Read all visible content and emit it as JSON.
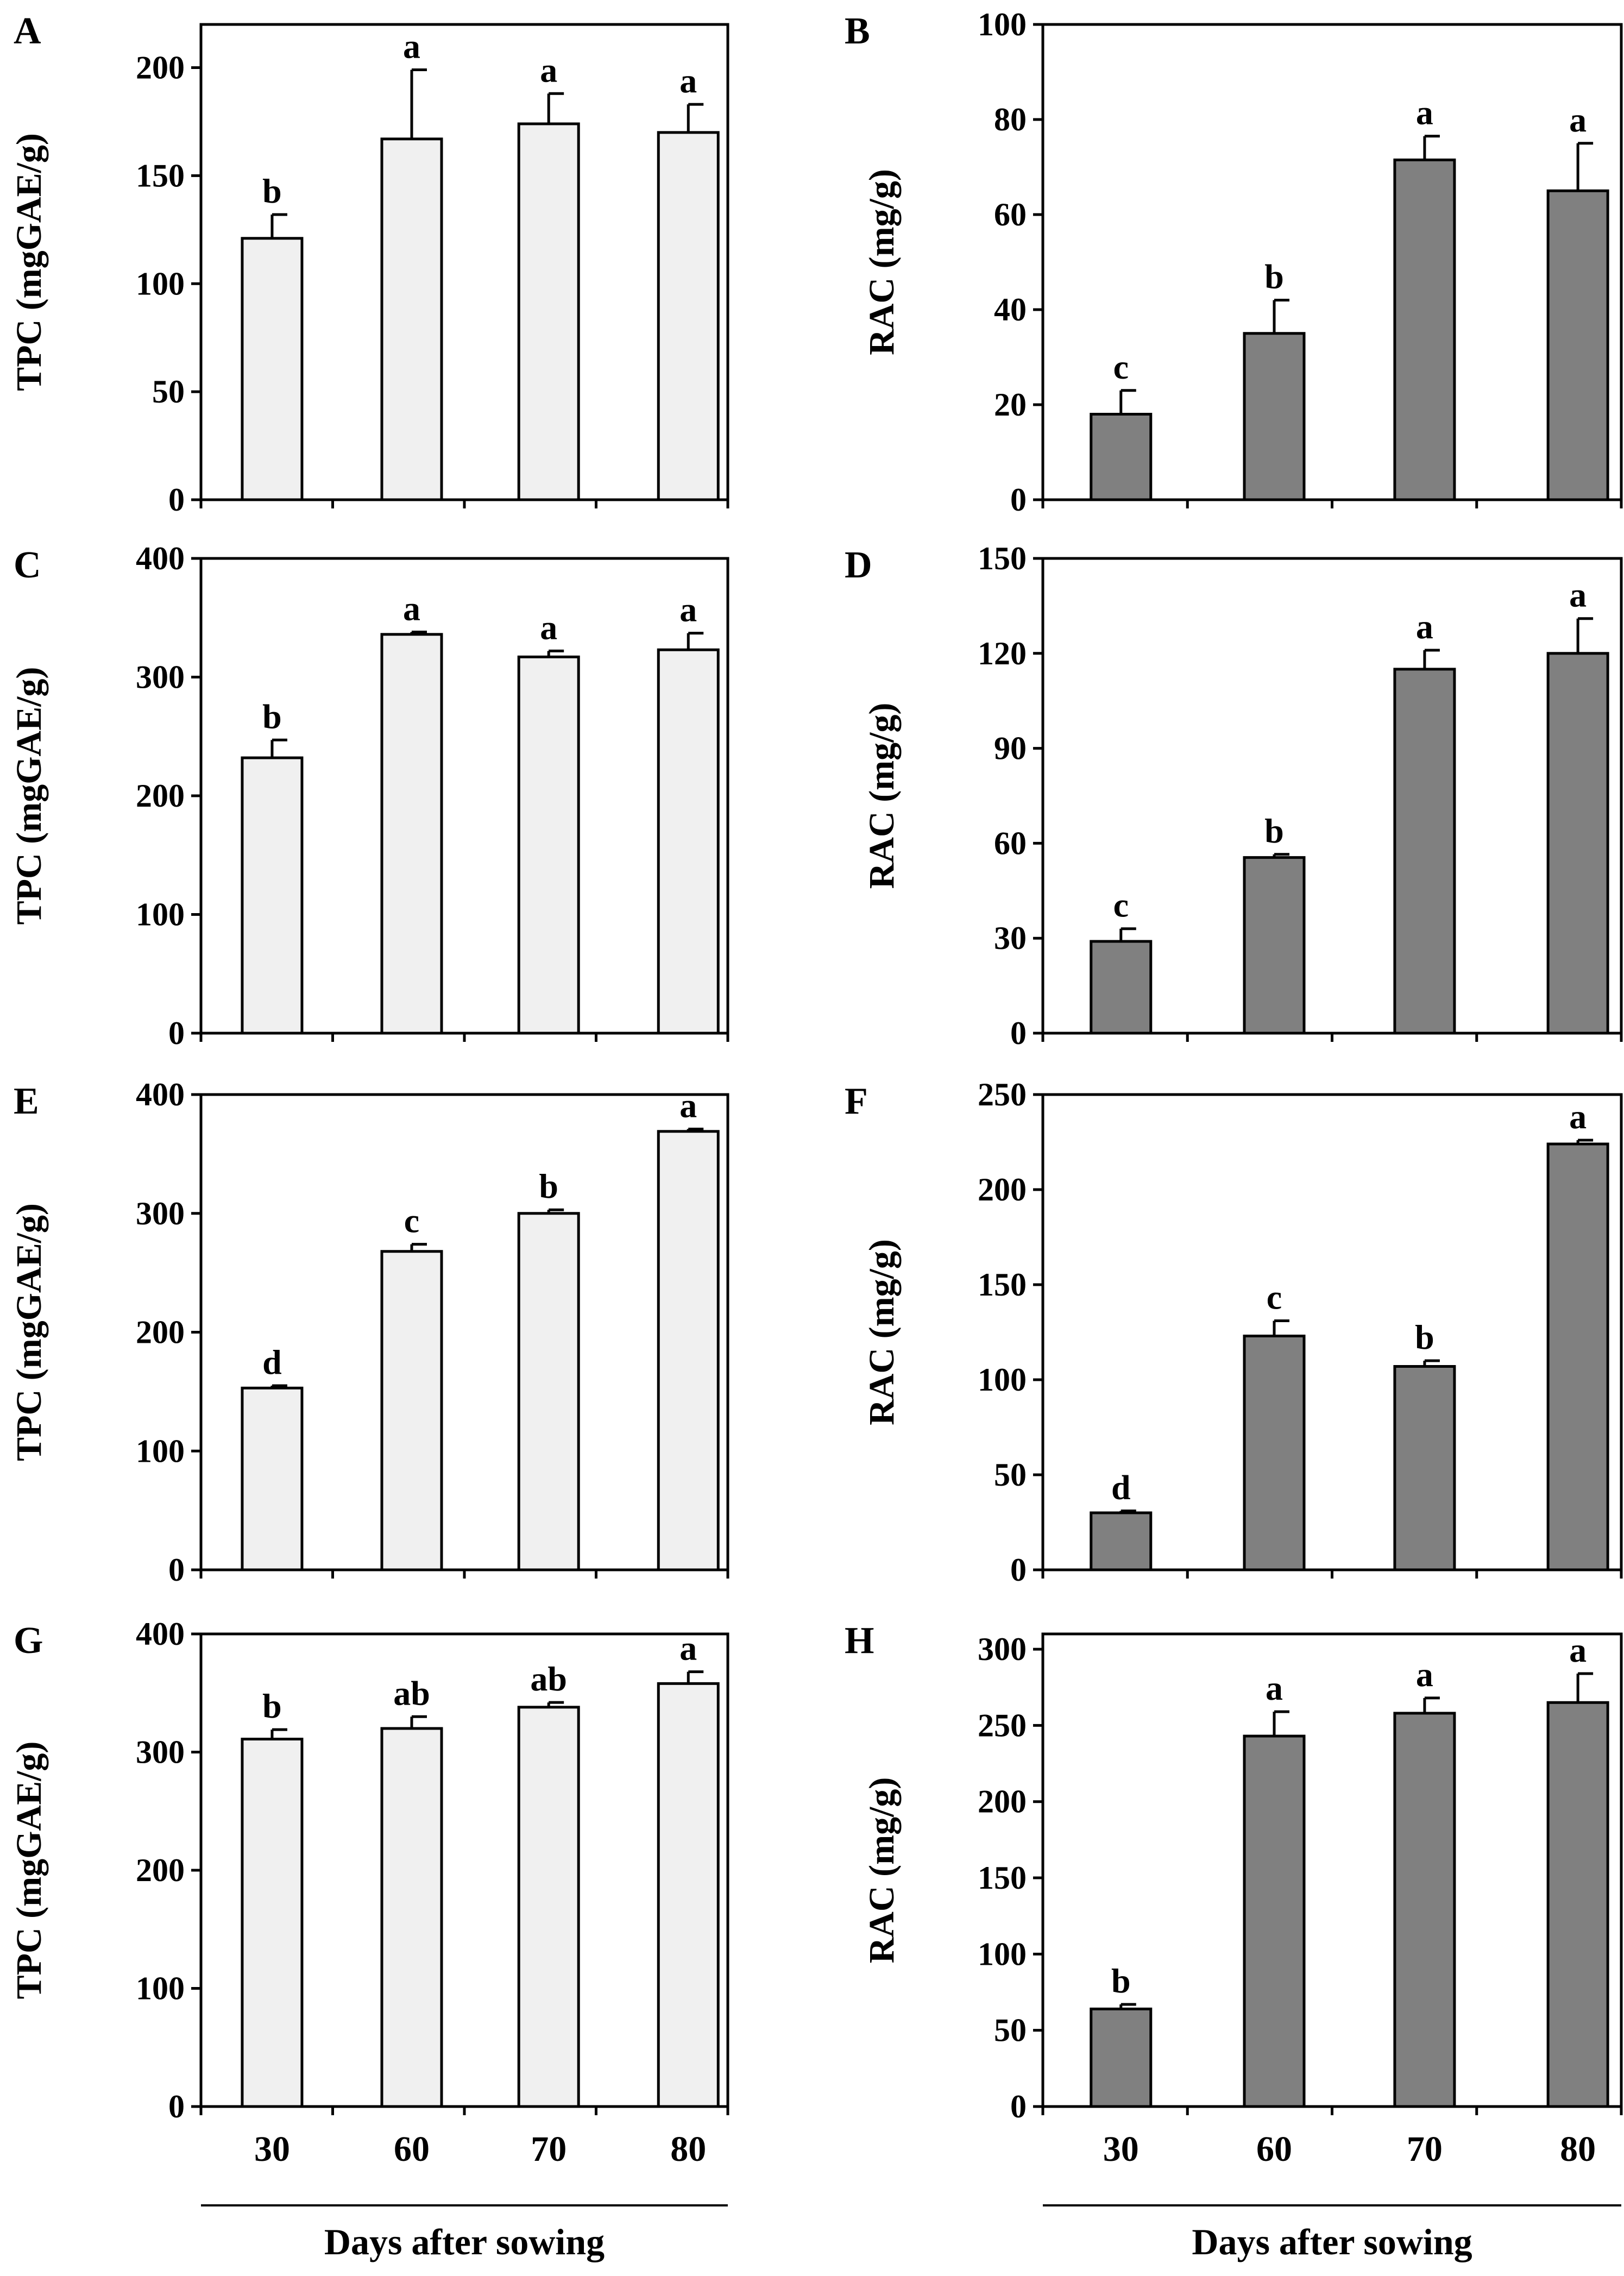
{
  "x_title": "Days after sowing",
  "colors": {
    "tpc_bar": "#f0f0f0",
    "rac_bar": "#808080",
    "stroke": "#000000"
  },
  "chart_data": [
    {
      "panel": "A",
      "type": "bar",
      "ylabel": "TPC (mgGAE/g)",
      "ylim": [
        0,
        220
      ],
      "yticks": [
        0,
        50,
        100,
        150,
        200
      ],
      "categories": [
        "30",
        "60",
        "70",
        "80"
      ],
      "values": [
        121,
        167,
        174,
        170
      ],
      "errors": [
        11,
        32,
        14,
        13
      ],
      "letters": [
        "b",
        "a",
        "a",
        "a"
      ]
    },
    {
      "panel": "B",
      "type": "bar",
      "ylabel": "RAC (mg/g)",
      "ylim": [
        0,
        100
      ],
      "yticks": [
        0,
        20,
        40,
        60,
        80,
        100
      ],
      "categories": [
        "30",
        "60",
        "70",
        "80"
      ],
      "values": [
        18,
        35,
        71.5,
        65
      ],
      "errors": [
        5,
        7,
        5,
        10
      ],
      "letters": [
        "c",
        "b",
        "a",
        "a"
      ]
    },
    {
      "panel": "C",
      "type": "bar",
      "ylabel": "TPC (mgGAE/g)",
      "ylim": [
        0,
        400
      ],
      "yticks": [
        0,
        100,
        200,
        300,
        400
      ],
      "categories": [
        "30",
        "60",
        "70",
        "80"
      ],
      "values": [
        232,
        336,
        317,
        323
      ],
      "errors": [
        15,
        2,
        5,
        14
      ],
      "letters": [
        "b",
        "a",
        "a",
        "a"
      ]
    },
    {
      "panel": "D",
      "type": "bar",
      "ylabel": "RAC (mg/g)",
      "ylim": [
        0,
        150
      ],
      "yticks": [
        0,
        30,
        60,
        90,
        120,
        150
      ],
      "categories": [
        "30",
        "60",
        "70",
        "80"
      ],
      "values": [
        29,
        55.5,
        115,
        120
      ],
      "errors": [
        4,
        1,
        6,
        11
      ],
      "letters": [
        "c",
        "b",
        "a",
        "a"
      ]
    },
    {
      "panel": "E",
      "type": "bar",
      "ylabel": "TPC (mgGAE/g)",
      "ylim": [
        0,
        400
      ],
      "yticks": [
        0,
        100,
        200,
        300,
        400
      ],
      "categories": [
        "30",
        "60",
        "70",
        "80"
      ],
      "values": [
        153,
        268,
        300,
        369
      ],
      "errors": [
        2,
        6,
        3,
        2
      ],
      "letters": [
        "d",
        "c",
        "b",
        "a"
      ]
    },
    {
      "panel": "F",
      "type": "bar",
      "ylabel": "RAC (mg/g)",
      "ylim": [
        0,
        250
      ],
      "yticks": [
        0,
        50,
        100,
        150,
        200,
        250
      ],
      "categories": [
        "30",
        "60",
        "70",
        "80"
      ],
      "values": [
        30,
        123,
        107,
        224
      ],
      "errors": [
        1,
        8,
        3,
        2
      ],
      "letters": [
        "d",
        "c",
        "b",
        "a"
      ]
    },
    {
      "panel": "G",
      "type": "bar",
      "ylabel": "TPC (mgGAE/g)",
      "ylim": [
        0,
        400
      ],
      "yticks": [
        0,
        100,
        200,
        300,
        400
      ],
      "categories": [
        "30",
        "60",
        "70",
        "80"
      ],
      "values": [
        311,
        320,
        338,
        358
      ],
      "errors": [
        8,
        10,
        4,
        10
      ],
      "letters": [
        "b",
        "ab",
        "ab",
        "a"
      ]
    },
    {
      "panel": "H",
      "type": "bar",
      "ylabel": "RAC (mg/g)",
      "ylim": [
        0,
        310
      ],
      "yticks": [
        0,
        50,
        100,
        150,
        200,
        250,
        300
      ],
      "categories": [
        "30",
        "60",
        "70",
        "80"
      ],
      "values": [
        64,
        243,
        258,
        265
      ],
      "errors": [
        3,
        16,
        10,
        19
      ],
      "letters": [
        "b",
        "a",
        "a",
        "a"
      ]
    }
  ]
}
